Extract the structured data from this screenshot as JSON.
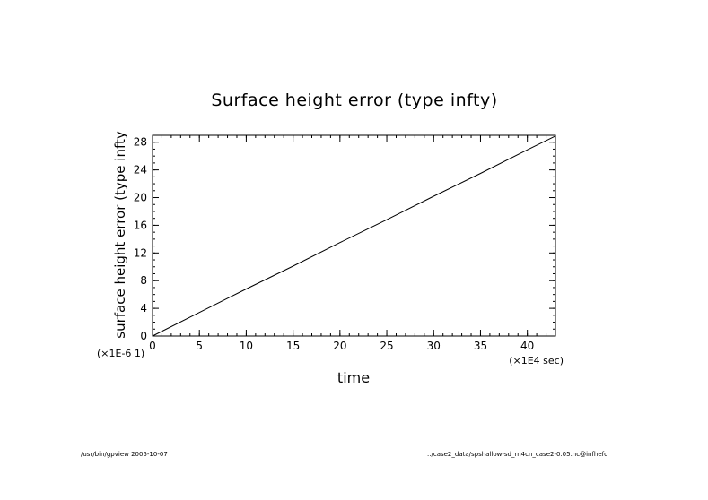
{
  "chart_data": {
    "type": "line",
    "title": "Surface height error (type infty)",
    "xlabel": "time",
    "ylabel": "surface height error (type infty",
    "x_scale_label": "(×1E4 sec)",
    "y_scale_label": "(×1E-6 1)",
    "xlim": [
      0,
      43
    ],
    "ylim": [
      0,
      29
    ],
    "x_ticks": [
      0,
      5,
      10,
      15,
      20,
      25,
      30,
      35,
      40
    ],
    "y_ticks": [
      0,
      4,
      8,
      12,
      16,
      20,
      24,
      28
    ],
    "x_minor_step": 1,
    "y_minor_step": 1,
    "grid": false,
    "series": [
      {
        "x": [
          0,
          5,
          10,
          15,
          20,
          25,
          30,
          35,
          40,
          43
        ],
        "values": [
          0,
          3.4,
          6.8,
          10.1,
          13.5,
          16.8,
          20.2,
          23.5,
          26.9,
          28.9
        ]
      }
    ]
  },
  "footer": {
    "left": "/usr/bin/gpview  2005-10-07",
    "right": "../case2_data/spshallow-sd_rn4cn_case2-0.05.nc@infhefc"
  }
}
